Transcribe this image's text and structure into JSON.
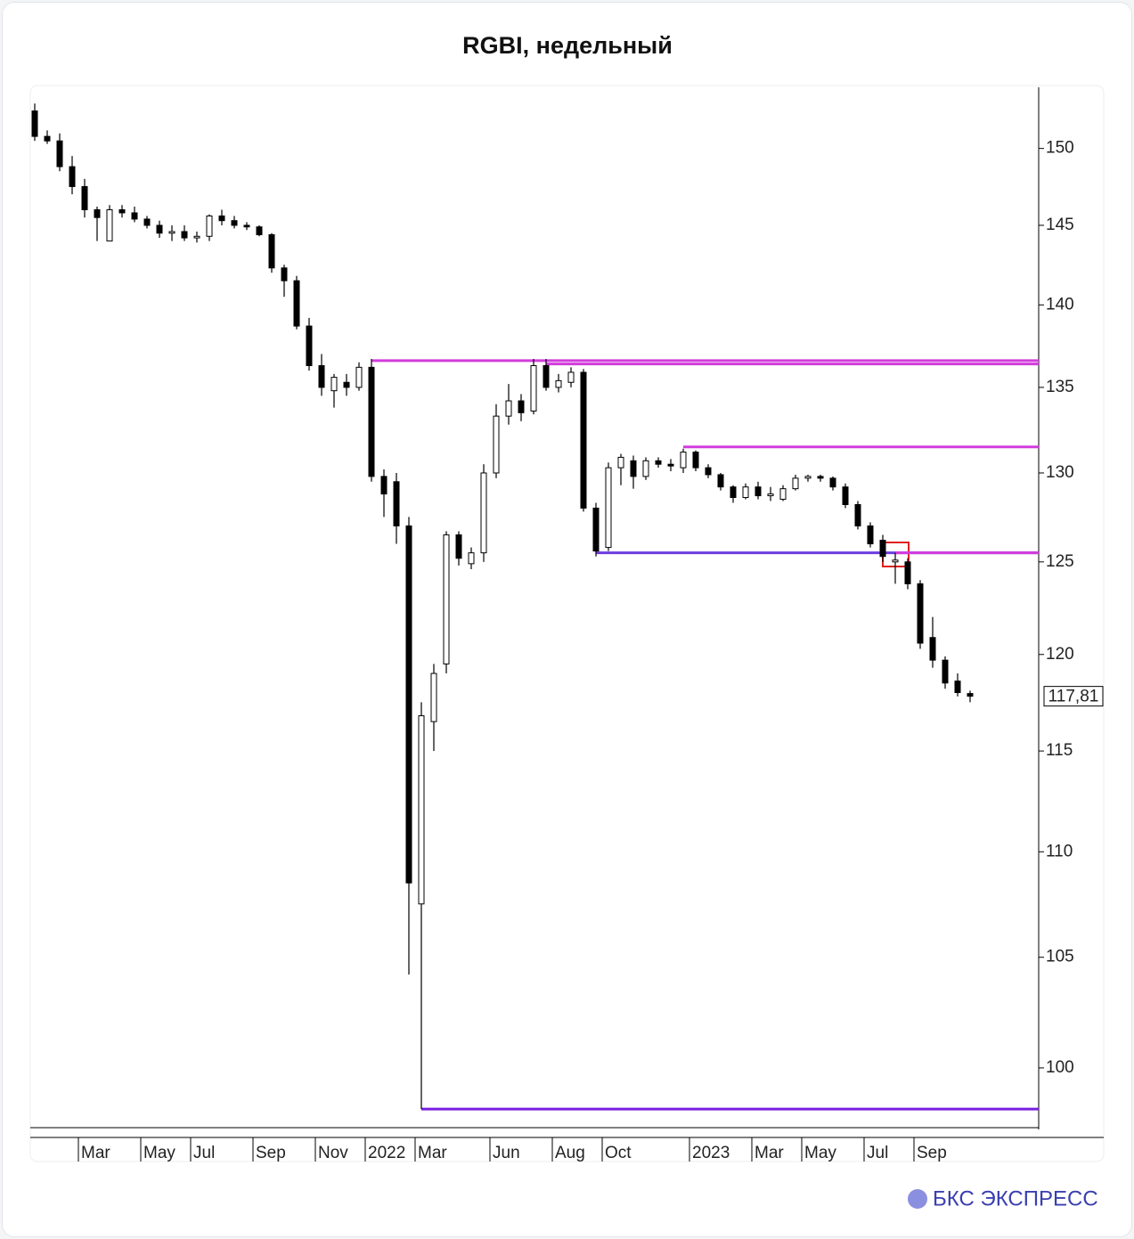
{
  "chart_data": {
    "type": "candlestick",
    "title": "RGBI, недельный",
    "brand": "БКС ЭКСПРЕСС",
    "log_scale": true,
    "categories": [
      null,
      null,
      null,
      null,
      "Mar",
      null,
      null,
      null,
      null,
      "May",
      null,
      null,
      null,
      "Jul",
      null,
      null,
      null,
      null,
      "Sep",
      null,
      null,
      null,
      null,
      "Nov",
      null,
      null,
      null,
      "2022",
      null,
      null,
      null,
      "Mar",
      null,
      null,
      null,
      null,
      null,
      "Jun",
      null,
      null,
      null,
      null,
      "Aug",
      null,
      null,
      null,
      "Oct",
      null,
      null,
      null,
      null,
      null,
      null,
      "2023",
      null,
      null,
      null,
      null,
      "Mar",
      null,
      null,
      null,
      "May",
      null,
      null,
      null,
      null,
      "Jul",
      null,
      null,
      null,
      "Sep",
      null,
      null,
      null,
      null
    ],
    "open": [
      152.5,
      150.8,
      150.5,
      148.8,
      147.5,
      146,
      144,
      146,
      145.8,
      145.4,
      145,
      144.5,
      144.6,
      144.2,
      144.3,
      145.6,
      145.3,
      145,
      144.9,
      144.4,
      142.3,
      141.5,
      138.7,
      136.3,
      134.8,
      135.3,
      135,
      136.2,
      129.8,
      129.5,
      127,
      107.5,
      116.5,
      119.5,
      126.5,
      124.9,
      125.5,
      130,
      133.3,
      134.2,
      133.6,
      136.3,
      135,
      135.3,
      135.9,
      128,
      125.8,
      130.3,
      130.7,
      129.8,
      130.7,
      130.5,
      130.3,
      131.2,
      130.3,
      129.9,
      129.2,
      128.6,
      129.2,
      128.7,
      128.5,
      129.1,
      129.7,
      129.8,
      129.7,
      129.2,
      128.2,
      127,
      126.2,
      125,
      125,
      123.8,
      120.9,
      119.7,
      118.6,
      117.95
    ],
    "high": [
      153,
      151.2,
      151,
      149.5,
      148,
      146.2,
      146.3,
      146.3,
      146.2,
      145.6,
      145.3,
      145,
      145,
      144.6,
      145.7,
      146,
      145.6,
      145.2,
      145,
      144.5,
      142.5,
      141.8,
      139.2,
      137,
      135.8,
      135.8,
      136.5,
      136.7,
      130.2,
      130,
      127.5,
      117.5,
      119.5,
      126.7,
      126.7,
      125.8,
      130.5,
      134,
      135.2,
      134.6,
      136.7,
      136.7,
      135.8,
      136.2,
      136.1,
      128.3,
      130.6,
      131.1,
      131,
      130.9,
      130.9,
      130.8,
      131.4,
      131.3,
      130.5,
      130,
      129.3,
      129.4,
      129.5,
      129.2,
      129.3,
      129.9,
      129.9,
      129.9,
      129.8,
      129.4,
      128.4,
      127.2,
      126.5,
      125.5,
      125.2,
      124,
      122,
      119.9,
      119,
      118.1
    ],
    "low": [
      150.5,
      150.3,
      148.5,
      147,
      145.5,
      144,
      144,
      145.5,
      145.2,
      144.8,
      144.2,
      144,
      144,
      143.9,
      144,
      145,
      144.8,
      144.7,
      144.3,
      142,
      140.5,
      138.5,
      136,
      134.5,
      133.8,
      134.5,
      134.8,
      129.5,
      127.5,
      126,
      104.2,
      98.2,
      115,
      119,
      124.8,
      124.6,
      125,
      129.7,
      132.8,
      133,
      133.4,
      134.8,
      134.7,
      135,
      127.8,
      125.3,
      125.6,
      129.3,
      129.1,
      129.6,
      130.3,
      130.1,
      130,
      130.1,
      129.7,
      129,
      128.3,
      128.5,
      128.5,
      128.4,
      128.4,
      129,
      129.5,
      129.5,
      129,
      128,
      126.8,
      125.8,
      125,
      123.8,
      123.5,
      120.3,
      119.3,
      118.2,
      117.8,
      117.5
    ],
    "close": [
      150.8,
      150.5,
      148.8,
      147.5,
      146,
      145.5,
      146,
      145.8,
      145.4,
      145,
      144.5,
      144.6,
      144.2,
      144.3,
      145.6,
      145.3,
      145,
      144.9,
      144.4,
      142.3,
      141.5,
      138.7,
      136.3,
      135,
      135.6,
      135,
      136.2,
      129.8,
      128.8,
      127,
      108.5,
      116.8,
      119,
      126.5,
      125.2,
      125.5,
      130,
      133.3,
      134.2,
      133.5,
      136.3,
      135,
      135.4,
      135.9,
      128,
      125.6,
      130.3,
      130.9,
      129.8,
      130.7,
      130.5,
      130.4,
      131.2,
      130.3,
      129.9,
      129.2,
      128.6,
      129.2,
      128.7,
      128.8,
      129.1,
      129.7,
      129.8,
      129.7,
      129.2,
      128.2,
      127,
      126,
      125.3,
      125.1,
      123.8,
      120.6,
      119.7,
      118.5,
      118,
      117.81
    ],
    "levels": [
      {
        "value": 136.6,
        "start": 27,
        "color": "#d23cdc"
      },
      {
        "value": 136.4,
        "start": 41,
        "color": "#d23cdc"
      },
      {
        "value": 131.5,
        "start": 52,
        "color": "#d23cdc"
      },
      {
        "value": 125.5,
        "start": 45,
        "color": "#6f3ce0"
      },
      {
        "value": 125.5,
        "start": 69,
        "color": "#d23cdc"
      },
      {
        "value": 98.2,
        "start": 31,
        "color": "#7a1fe0"
      }
    ],
    "last_price": {
      "value": 117.81,
      "label": "117,81"
    },
    "ylim": [
      97.4,
      154.1
    ],
    "yticks": [
      100,
      105,
      110,
      115,
      120,
      125,
      130,
      135,
      140,
      145,
      150
    ]
  }
}
